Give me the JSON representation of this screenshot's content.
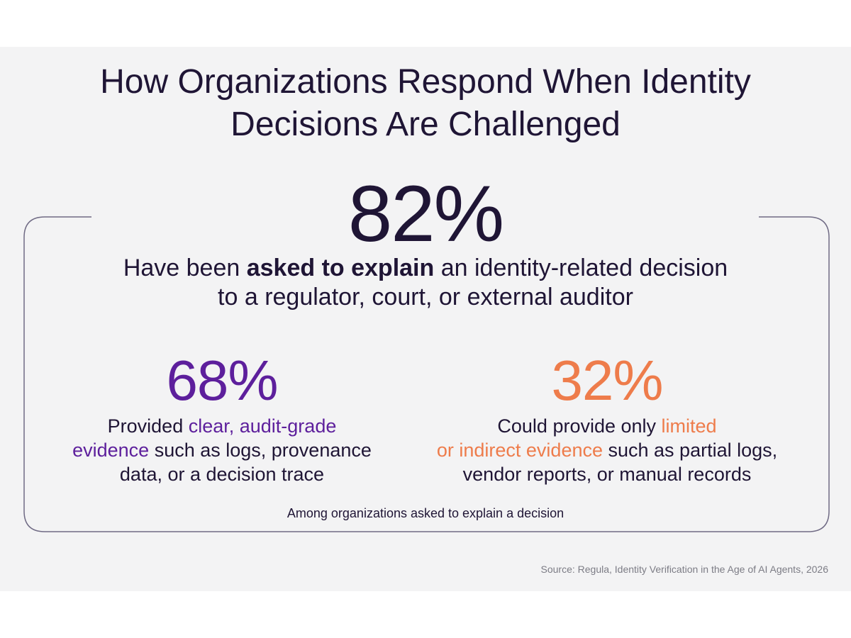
{
  "title": {
    "line1": "How Organizations Respond When Identity",
    "line2": "Decisions Are Challenged"
  },
  "headline_stat": {
    "value": "82%",
    "desc_line1_pre": "Have been ",
    "desc_line1_bold": "asked to explain",
    "desc_line1_post": " an identity-related decision",
    "desc_line2": "to a regulator, court, or external auditor"
  },
  "stat_left": {
    "value": "68%",
    "line1_pre": "Provided ",
    "line1_hl": "clear, audit-grade",
    "line2_hl": "evidence",
    "line2_post": " such as logs, provenance",
    "line3": "data, or a decision trace"
  },
  "stat_right": {
    "value": "32%",
    "line1_pre": "Could provide only ",
    "line1_hl": "limited",
    "line2_hl": "or indirect evidence",
    "line2_post": " such as partial logs,",
    "line3": "vendor reports, or manual records"
  },
  "footnote": "Among organizations asked to explain a decision",
  "source": "Source: Regula, Identity Verification in the Age of AI Agents, 2026",
  "colors": {
    "background": "#f3f3f4",
    "text": "#1f1535",
    "purple": "#5d1f9c",
    "orange": "#ee7c4b",
    "frame": "#6f6a84",
    "muted": "#7c7c85"
  }
}
